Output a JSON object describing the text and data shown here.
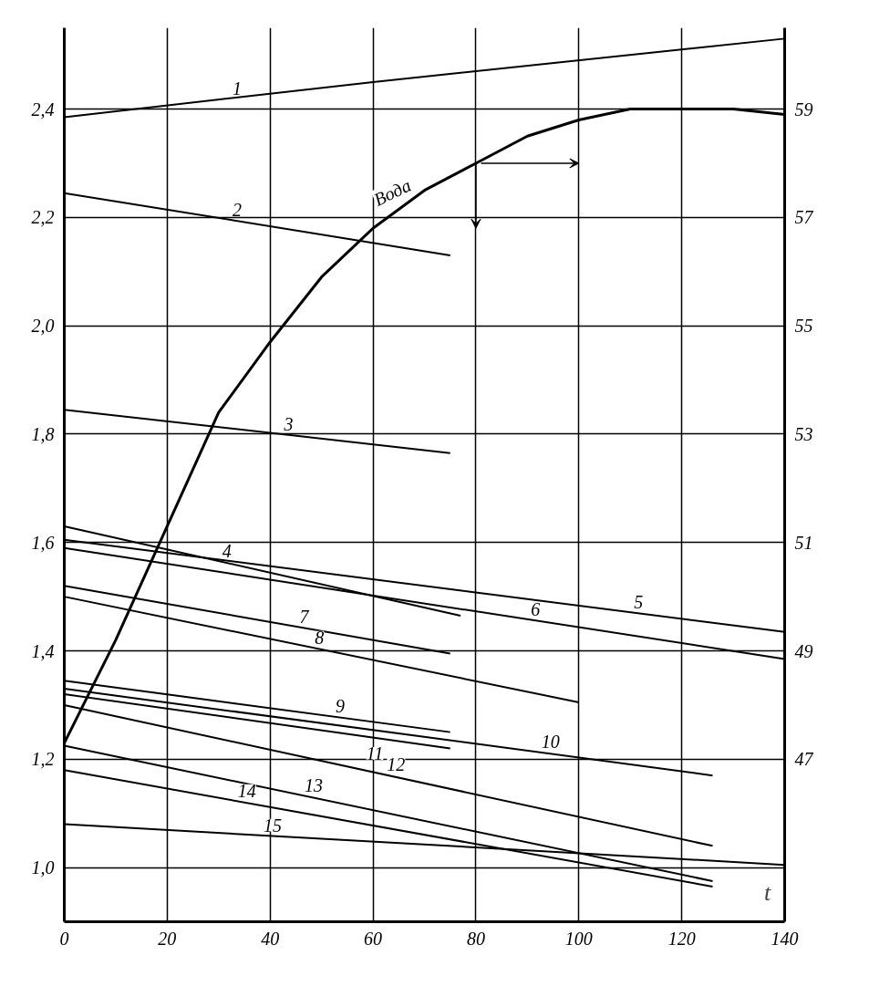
{
  "chart_data": {
    "type": "line",
    "xlabel": "t",
    "xlim": [
      0,
      140
    ],
    "xticks": [
      0,
      20,
      40,
      60,
      80,
      100,
      120,
      140
    ],
    "ylim": [
      0.9,
      2.55
    ],
    "yticks": [
      {
        "value": 1.0,
        "label": "1,0"
      },
      {
        "value": 1.2,
        "label": "1,2"
      },
      {
        "value": 1.4,
        "label": "1,4"
      },
      {
        "value": 1.6,
        "label": "1,6"
      },
      {
        "value": 1.8,
        "label": "1,8"
      },
      {
        "value": 2.0,
        "label": "2,0"
      },
      {
        "value": 2.2,
        "label": "2,2"
      },
      {
        "value": 2.4,
        "label": "2,4"
      }
    ],
    "y2lim": [
      44,
      60.5
    ],
    "y2ticks": [
      47,
      49,
      51,
      53,
      55,
      57,
      59
    ],
    "grid": true,
    "legend": false,
    "marker": "none",
    "line_style": "solid",
    "series": [
      {
        "name": "1",
        "color": "#000000",
        "x": [
          0,
          60,
          140
        ],
        "values": [
          2.385,
          2.45,
          2.53
        ]
      },
      {
        "name": "2",
        "color": "#000000",
        "x": [
          0,
          75
        ],
        "values": [
          2.245,
          2.13
        ]
      },
      {
        "name": "3",
        "color": "#000000",
        "x": [
          0,
          75
        ],
        "values": [
          1.845,
          1.765
        ]
      },
      {
        "name": "4",
        "color": "#000000",
        "x": [
          0,
          77
        ],
        "values": [
          1.63,
          1.465
        ]
      },
      {
        "name": "5",
        "color": "#000000",
        "x": [
          0,
          140
        ],
        "values": [
          1.605,
          1.435
        ]
      },
      {
        "name": "6",
        "color": "#000000",
        "x": [
          0,
          140
        ],
        "values": [
          1.59,
          1.385
        ]
      },
      {
        "name": "7",
        "color": "#000000",
        "x": [
          0,
          75
        ],
        "values": [
          1.52,
          1.395
        ]
      },
      {
        "name": "8",
        "color": "#000000",
        "x": [
          0,
          100
        ],
        "values": [
          1.5,
          1.305
        ]
      },
      {
        "name": "9",
        "color": "#000000",
        "x": [
          0,
          75
        ],
        "values": [
          1.345,
          1.25
        ]
      },
      {
        "name": "10",
        "color": "#000000",
        "x": [
          0,
          126
        ],
        "values": [
          1.33,
          1.17
        ]
      },
      {
        "name": "11",
        "color": "#000000",
        "x": [
          0,
          75
        ],
        "values": [
          1.32,
          1.22
        ]
      },
      {
        "name": "12",
        "color": "#000000",
        "x": [
          0,
          126
        ],
        "values": [
          1.3,
          1.04
        ]
      },
      {
        "name": "13",
        "color": "#000000",
        "x": [
          0,
          126
        ],
        "values": [
          1.225,
          0.975
        ]
      },
      {
        "name": "14",
        "color": "#000000",
        "x": [
          0,
          126
        ],
        "values": [
          1.18,
          0.965
        ]
      },
      {
        "name": "15",
        "color": "#000000",
        "x": [
          0,
          140
        ],
        "values": [
          1.08,
          1.005
        ]
      },
      {
        "name": "Вода",
        "color": "#000000",
        "axis": "y2",
        "x": [
          0,
          10,
          20,
          30,
          40,
          50,
          60,
          70,
          80,
          90,
          100,
          110,
          120,
          130,
          140
        ],
        "values": [
          47.3,
          49.2,
          51.3,
          53.4,
          54.7,
          55.9,
          56.8,
          57.5,
          58.0,
          58.5,
          58.8,
          59.0,
          59.0,
          59.0,
          58.9
        ]
      }
    ]
  }
}
